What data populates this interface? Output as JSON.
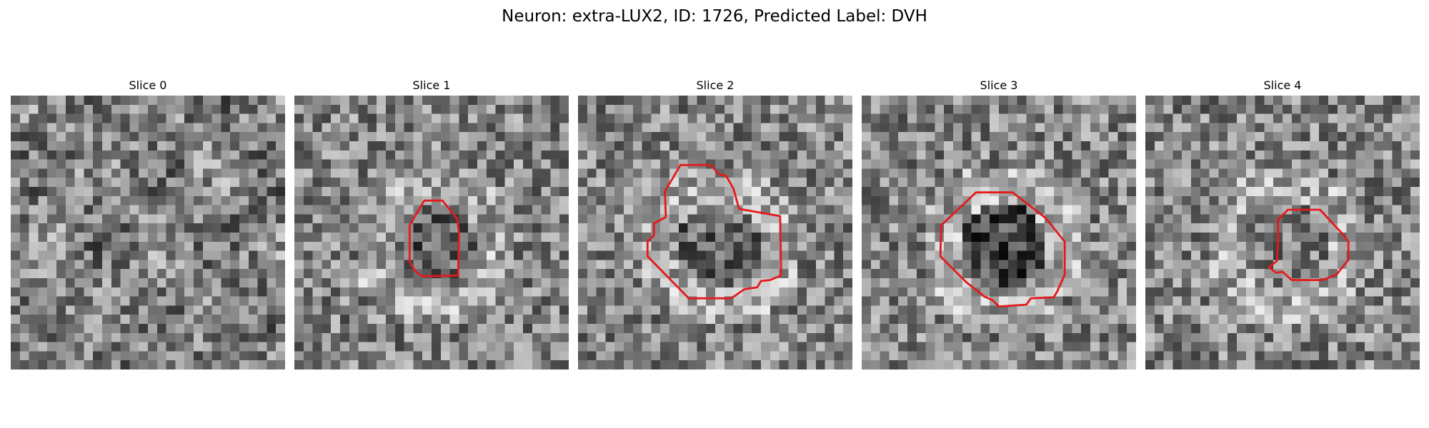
{
  "figure": {
    "title": "Neuron: extra-LUX2, ID: 1726, Predicted Label: DVH"
  },
  "grid_size": 30,
  "colors": {
    "background": "#ffffff",
    "contour": "#e41a1c",
    "colormap": "grayscale"
  },
  "slices": [
    {
      "label": "Slice 0",
      "seed": 11,
      "center_brightness": 0.52,
      "has_contour": false,
      "contour": []
    },
    {
      "label": "Slice 1",
      "seed": 23,
      "center_brightness": 0.38,
      "has_contour": true,
      "contour": [
        [
          14.2,
          11.5
        ],
        [
          16.2,
          11.5
        ],
        [
          17.8,
          13.5
        ],
        [
          18.0,
          15.0
        ],
        [
          17.9,
          19.7
        ],
        [
          14.0,
          19.8
        ],
        [
          13.2,
          19.2
        ],
        [
          12.6,
          18.2
        ],
        [
          12.6,
          14.2
        ]
      ]
    },
    {
      "label": "Slice 2",
      "seed": 37,
      "center_brightness": 0.4,
      "has_contour": true,
      "contour": [
        [
          11.2,
          7.6
        ],
        [
          14.5,
          7.6
        ],
        [
          15.4,
          8.6
        ],
        [
          16.2,
          8.8
        ],
        [
          17.0,
          10.2
        ],
        [
          17.6,
          12.4
        ],
        [
          22.1,
          13.2
        ],
        [
          22.2,
          19.7
        ],
        [
          21.0,
          20.2
        ],
        [
          20.0,
          20.3
        ],
        [
          19.6,
          21.0
        ],
        [
          18.2,
          21.2
        ],
        [
          17.2,
          21.9
        ],
        [
          16.7,
          22.2
        ],
        [
          12.1,
          22.2
        ],
        [
          7.6,
          17.6
        ],
        [
          7.6,
          16.0
        ],
        [
          8.3,
          15.3
        ],
        [
          8.3,
          14.0
        ],
        [
          9.6,
          13.3
        ],
        [
          9.5,
          10.5
        ]
      ]
    },
    {
      "label": "Slice 3",
      "seed": 51,
      "center_brightness": 0.28,
      "has_contour": true,
      "contour": [
        [
          12.5,
          10.6
        ],
        [
          16.5,
          10.6
        ],
        [
          20.1,
          13.4
        ],
        [
          22.2,
          16.0
        ],
        [
          22.2,
          19.6
        ],
        [
          21.4,
          21.4
        ],
        [
          21.0,
          22.1
        ],
        [
          18.5,
          22.2
        ],
        [
          18.0,
          22.9
        ],
        [
          15.0,
          23.1
        ],
        [
          14.3,
          22.4
        ],
        [
          13.4,
          22.0
        ],
        [
          11.4,
          20.4
        ],
        [
          8.6,
          17.6
        ],
        [
          8.7,
          14.2
        ]
      ]
    },
    {
      "label": "Slice 4",
      "seed": 67,
      "center_brightness": 0.5,
      "has_contour": true,
      "contour": [
        [
          15.6,
          12.5
        ],
        [
          19.1,
          12.5
        ],
        [
          21.7,
          15.3
        ],
        [
          22.2,
          16.0
        ],
        [
          22.2,
          18.0
        ],
        [
          20.9,
          19.6
        ],
        [
          19.4,
          20.2
        ],
        [
          16.0,
          20.2
        ],
        [
          15.0,
          19.3
        ],
        [
          14.3,
          19.4
        ],
        [
          13.5,
          18.8
        ],
        [
          14.4,
          18.1
        ],
        [
          14.5,
          16.0
        ],
        [
          14.5,
          13.6
        ]
      ]
    }
  ]
}
